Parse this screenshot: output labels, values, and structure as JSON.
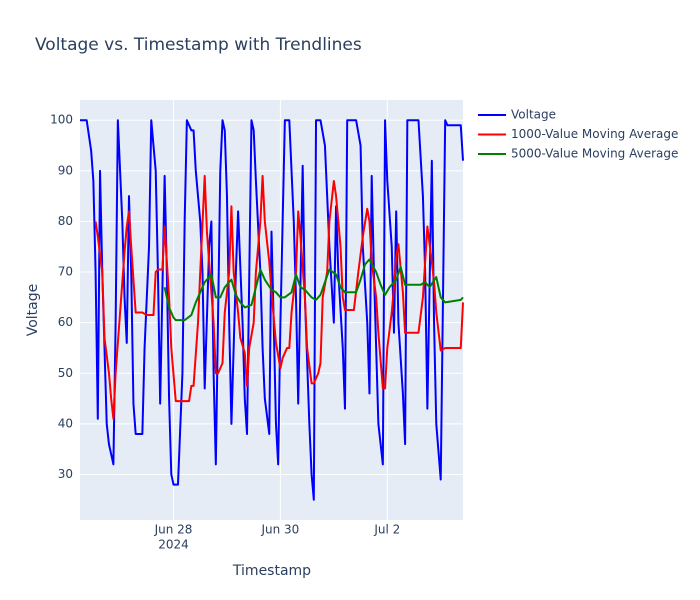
{
  "chart_data": {
    "type": "line",
    "title": "Voltage vs. Timestamp with Trendlines",
    "x_label": "Timestamp",
    "y_label": "Voltage",
    "xlim": [
      "2024-06-26T06:00",
      "2024-07-03T10:00"
    ],
    "xticks": [
      {
        "value": "2024-06-28T00:00",
        "label": "Jun 28"
      },
      {
        "value": "2024-06-30T00:00",
        "label": "Jun 30"
      },
      {
        "value": "2024-07-02T00:00",
        "label": "Jul 2"
      }
    ],
    "xtick_year": "2024",
    "ylim": [
      21,
      104
    ],
    "yticks": [
      30,
      40,
      50,
      60,
      70,
      80,
      90,
      100
    ],
    "grid": true,
    "legend": "right",
    "series": [
      {
        "name": "Voltage",
        "color": "#0000ff",
        "x": [
          "2024-06-26T06:00",
          "2024-06-26T09:00",
          "2024-06-26T10:00",
          "2024-06-26T11:00",
          "2024-06-26T12:00",
          "2024-06-26T13:00",
          "2024-06-26T14:00",
          "2024-06-26T15:00",
          "2024-06-26T16:00",
          "2024-06-26T17:00",
          "2024-06-26T18:00",
          "2024-06-26T19:00",
          "2024-06-26T21:00",
          "2024-06-26T22:00",
          "2024-06-26T23:00",
          "2024-06-27T00:00",
          "2024-06-27T01:00",
          "2024-06-27T02:00",
          "2024-06-27T03:00",
          "2024-06-27T04:00",
          "2024-06-27T05:00",
          "2024-06-27T06:00",
          "2024-06-27T07:00",
          "2024-06-27T10:00",
          "2024-06-27T11:00",
          "2024-06-27T13:00",
          "2024-06-27T14:00",
          "2024-06-27T16:00",
          "2024-06-27T17:00",
          "2024-06-27T18:00",
          "2024-06-27T20:00",
          "2024-06-27T21:00",
          "2024-06-27T22:00",
          "2024-06-27T23:00",
          "2024-06-28T00:00",
          "2024-06-28T02:00",
          "2024-06-28T04:00",
          "2024-06-28T05:00",
          "2024-06-28T06:00",
          "2024-06-28T08:00",
          "2024-06-28T09:00",
          "2024-06-28T10:00",
          "2024-06-28T12:00",
          "2024-06-28T13:00",
          "2024-06-28T14:00",
          "2024-06-28T16:00",
          "2024-06-28T17:00",
          "2024-06-28T18:00",
          "2024-06-28T19:00",
          "2024-06-28T21:00",
          "2024-06-28T22:00",
          "2024-06-28T23:00",
          "2024-06-29T00:00",
          "2024-06-29T01:00",
          "2024-06-29T02:00",
          "2024-06-29T04:00",
          "2024-06-29T05:00",
          "2024-06-29T07:00",
          "2024-06-29T08:00",
          "2024-06-29T09:00",
          "2024-06-29T11:00",
          "2024-06-29T12:00",
          "2024-06-29T13:00",
          "2024-06-29T15:00",
          "2024-06-29T16:00",
          "2024-06-29T17:00",
          "2024-06-29T19:00",
          "2024-06-29T20:00",
          "2024-06-29T21:00",
          "2024-06-29T22:00",
          "2024-06-29T23:00",
          "2024-06-30T00:00",
          "2024-06-30T02:00",
          "2024-06-30T04:00",
          "2024-06-30T06:00",
          "2024-06-30T07:00",
          "2024-06-30T08:00",
          "2024-06-30T10:00",
          "2024-06-30T11:00",
          "2024-06-30T13:00",
          "2024-06-30T14:00",
          "2024-06-30T15:00",
          "2024-06-30T16:00",
          "2024-06-30T18:00",
          "2024-06-30T20:00",
          "2024-06-30T21:00",
          "2024-06-30T22:00",
          "2024-07-01T00:00",
          "2024-07-01T01:00",
          "2024-07-01T02:00",
          "2024-07-01T04:00",
          "2024-07-01T05:00",
          "2024-07-01T06:00",
          "2024-07-01T10:00",
          "2024-07-01T12:00",
          "2024-07-01T13:00",
          "2024-07-01T15:00",
          "2024-07-01T16:00",
          "2024-07-01T17:00",
          "2024-07-01T18:00",
          "2024-07-01T19:00",
          "2024-07-01T20:00",
          "2024-07-01T22:00",
          "2024-07-01T23:00",
          "2024-07-02T00:00",
          "2024-07-02T02:00",
          "2024-07-02T03:00",
          "2024-07-02T04:00",
          "2024-07-02T05:00",
          "2024-07-02T07:00",
          "2024-07-02T08:00",
          "2024-07-02T09:00",
          "2024-07-02T14:00",
          "2024-07-02T16:00",
          "2024-07-02T17:00",
          "2024-07-02T18:00",
          "2024-07-02T20:00",
          "2024-07-02T21:00",
          "2024-07-02T22:00",
          "2024-07-03T00:00",
          "2024-07-03T02:00",
          "2024-07-03T03:00",
          "2024-07-03T09:00",
          "2024-07-03T10:00"
        ],
        "values": [
          100,
          100,
          97,
          94,
          88,
          70,
          41,
          90,
          70,
          55,
          40,
          36,
          32,
          60,
          100,
          90,
          80,
          65,
          56,
          85,
          70,
          44,
          38,
          38,
          55,
          75,
          100,
          90,
          70,
          44,
          89,
          70,
          45,
          30,
          28,
          28,
          50,
          80,
          100,
          98,
          98,
          90,
          80,
          70,
          47,
          75,
          80,
          50,
          32,
          90,
          100,
          98,
          85,
          60,
          40,
          70,
          82,
          60,
          45,
          38,
          100,
          98,
          88,
          70,
          55,
          45,
          38,
          78,
          60,
          40,
          32,
          60,
          100,
          100,
          80,
          65,
          44,
          91,
          65,
          40,
          30,
          25,
          100,
          100,
          95,
          85,
          75,
          60,
          83,
          70,
          55,
          43,
          100,
          100,
          95,
          75,
          60,
          46,
          89,
          70,
          55,
          40,
          32,
          100,
          88,
          75,
          58,
          82,
          60,
          46,
          36,
          100,
          100,
          85,
          70,
          43,
          92,
          60,
          40,
          29,
          100,
          99,
          99,
          92
        ]
      },
      {
        "name": "1000-Value Moving Average",
        "color": "#ff0000",
        "x": [
          "2024-06-26T13:00",
          "2024-06-26T14:00",
          "2024-06-26T16:00",
          "2024-06-26T17:00",
          "2024-06-26T19:00",
          "2024-06-26T20:00",
          "2024-06-26T21:00",
          "2024-06-26T22:00",
          "2024-06-27T00:00",
          "2024-06-27T02:00",
          "2024-06-27T03:00",
          "2024-06-27T04:00",
          "2024-06-27T05:00",
          "2024-06-27T07:00",
          "2024-06-27T10:00",
          "2024-06-27T12:00",
          "2024-06-27T15:00",
          "2024-06-27T16:00",
          "2024-06-27T17:00",
          "2024-06-27T19:00",
          "2024-06-27T20:00",
          "2024-06-27T22:00",
          "2024-06-27T23:00",
          "2024-06-28T01:00",
          "2024-06-28T07:00",
          "2024-06-28T08:00",
          "2024-06-28T09:00",
          "2024-06-28T11:00",
          "2024-06-28T12:00",
          "2024-06-28T14:00",
          "2024-06-28T15:00",
          "2024-06-28T16:00",
          "2024-06-28T18:00",
          "2024-06-28T19:00",
          "2024-06-28T20:00",
          "2024-06-28T22:00",
          "2024-06-28T23:00",
          "2024-06-29T01:00",
          "2024-06-29T02:00",
          "2024-06-29T03:00",
          "2024-06-29T05:00",
          "2024-06-29T06:00",
          "2024-06-29T08:00",
          "2024-06-29T09:00",
          "2024-06-29T10:00",
          "2024-06-29T12:00",
          "2024-06-29T13:00",
          "2024-06-29T15:00",
          "2024-06-29T16:00",
          "2024-06-29T17:00",
          "2024-06-29T19:00",
          "2024-06-29T20:00",
          "2024-06-29T22:00",
          "2024-06-30T00:00",
          "2024-06-30T01:00",
          "2024-06-30T03:00",
          "2024-06-30T04:00",
          "2024-06-30T05:00",
          "2024-06-30T07:00",
          "2024-06-30T08:00",
          "2024-06-30T09:00",
          "2024-06-30T11:00",
          "2024-06-30T12:00",
          "2024-06-30T14:00",
          "2024-06-30T15:00",
          "2024-06-30T17:00",
          "2024-06-30T18:00",
          "2024-06-30T19:00",
          "2024-06-30T21:00",
          "2024-06-30T22:00",
          "2024-07-01T00:00",
          "2024-07-01T01:00",
          "2024-07-01T03:00",
          "2024-07-01T04:00",
          "2024-07-01T05:00",
          "2024-07-01T09:00",
          "2024-07-01T11:00",
          "2024-07-01T13:00",
          "2024-07-01T15:00",
          "2024-07-01T16:00",
          "2024-07-01T17:00",
          "2024-07-01T19:00",
          "2024-07-01T20:00",
          "2024-07-01T22:00",
          "2024-07-01T23:00",
          "2024-07-02T00:00",
          "2024-07-02T02:00",
          "2024-07-02T03:00",
          "2024-07-02T04:00",
          "2024-07-02T05:00",
          "2024-07-02T07:00",
          "2024-07-02T08:00",
          "2024-07-02T14:00",
          "2024-07-02T16:00",
          "2024-07-02T17:00",
          "2024-07-02T18:00",
          "2024-07-02T20:00",
          "2024-07-02T21:00",
          "2024-07-02T22:00",
          "2024-07-03T00:00",
          "2024-07-03T02:00",
          "2024-07-03T09:00",
          "2024-07-03T10:00"
        ],
        "values": [
          80,
          77,
          70,
          57,
          50,
          45,
          41,
          50,
          62,
          74,
          79,
          82,
          75,
          62,
          62,
          61.5,
          61.5,
          70,
          70.5,
          70.5,
          79,
          65,
          55,
          44.5,
          44.5,
          47.5,
          47.5,
          60,
          70,
          89,
          78,
          72,
          60,
          50,
          50,
          52,
          62,
          70,
          83,
          70,
          62,
          57,
          54,
          47.5,
          55,
          60,
          70,
          80,
          89,
          80,
          72,
          66,
          56,
          51,
          53,
          55,
          55,
          62,
          70,
          82,
          77,
          65,
          55,
          48,
          48,
          50,
          52,
          65,
          70,
          80,
          88,
          85,
          75,
          65,
          62.5,
          62.5,
          70,
          77,
          82.5,
          80,
          72,
          65,
          58,
          47,
          47,
          55,
          62,
          67,
          73,
          75.5,
          66,
          58,
          58,
          65,
          72,
          79,
          72,
          68,
          62,
          54.5,
          55,
          55,
          64
        ]
      },
      {
        "name": "5000-Value Moving Average",
        "color": "#008000",
        "x": [
          "2024-06-27T20:00",
          "2024-06-27T22:00",
          "2024-06-28T00:00",
          "2024-06-28T01:00",
          "2024-06-28T05:00",
          "2024-06-28T08:00",
          "2024-06-28T10:00",
          "2024-06-28T12:00",
          "2024-06-28T14:00",
          "2024-06-28T17:00",
          "2024-06-28T19:00",
          "2024-06-28T21:00",
          "2024-06-28T23:00",
          "2024-06-29T02:00",
          "2024-06-29T04:00",
          "2024-06-29T06:00",
          "2024-06-29T08:00",
          "2024-06-29T11:00",
          "2024-06-29T13:00",
          "2024-06-29T15:00",
          "2024-06-29T17:00",
          "2024-06-29T20:00",
          "2024-06-29T22:00",
          "2024-06-30T00:00",
          "2024-06-30T02:00",
          "2024-06-30T05:00",
          "2024-06-30T07:00",
          "2024-06-30T09:00",
          "2024-06-30T11:00",
          "2024-06-30T14:00",
          "2024-06-30T16:00",
          "2024-06-30T18:00",
          "2024-06-30T20:00",
          "2024-06-30T22:00",
          "2024-07-01T01:00",
          "2024-07-01T03:00",
          "2024-07-01T05:00",
          "2024-07-01T10:00",
          "2024-07-01T12:00",
          "2024-07-01T14:00",
          "2024-07-01T16:00",
          "2024-07-01T19:00",
          "2024-07-01T21:00",
          "2024-07-01T23:00",
          "2024-07-02T01:00",
          "2024-07-02T04:00",
          "2024-07-02T06:00",
          "2024-07-02T08:00",
          "2024-07-02T15:00",
          "2024-07-02T17:00",
          "2024-07-02T19:00",
          "2024-07-02T22:00",
          "2024-07-03T00:00",
          "2024-07-03T02:00",
          "2024-07-03T09:00",
          "2024-07-03T10:00"
        ],
        "values": [
          67,
          63,
          61,
          60.5,
          60.5,
          61.5,
          64,
          66,
          68,
          69.5,
          65,
          65,
          67,
          68.5,
          65.5,
          64,
          63,
          63.5,
          67,
          70.5,
          68.5,
          66.5,
          66,
          65,
          65,
          66,
          69.5,
          67,
          66.5,
          65,
          64.5,
          65.5,
          68,
          70.5,
          69.5,
          67,
          66,
          66,
          68.5,
          71.5,
          72.5,
          70,
          67.5,
          65.5,
          67,
          68.5,
          71,
          67.5,
          67.5,
          68,
          67,
          69,
          65,
          64,
          64.5,
          65
        ]
      }
    ]
  }
}
